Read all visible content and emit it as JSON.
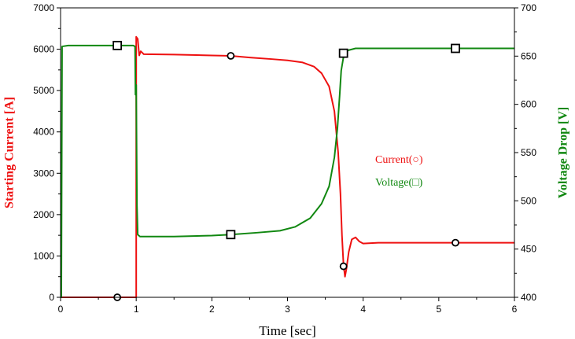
{
  "chart_data": {
    "type": "line",
    "xlabel": "Time [sec]",
    "ylabel_left": "Starting Current [A]",
    "ylabel_right": "Voltage Drop [V]",
    "xlim": [
      0,
      6
    ],
    "ylim_left": [
      0,
      7000
    ],
    "ylim_right": [
      400,
      700
    ],
    "x_ticks": [
      "0",
      "1",
      "2",
      "3",
      "4",
      "5",
      "6"
    ],
    "y_left_ticks": [
      "0",
      "1000",
      "2000",
      "3000",
      "4000",
      "5000",
      "6000",
      "7000"
    ],
    "y_right_ticks": [
      "400",
      "450",
      "500",
      "550",
      "600",
      "650",
      "700"
    ],
    "grid": false,
    "legend_labels": [
      "Current(○)",
      "Voltage(□)"
    ],
    "colors": {
      "current": "#ee1111",
      "voltage": "#118811",
      "axis": "#000000"
    },
    "series": [
      {
        "name": "Current(○)",
        "axis": "left",
        "color": "#ee1111",
        "marker": "circle",
        "points": [
          [
            0,
            0
          ],
          [
            1.0,
            0
          ],
          [
            1.0,
            6300
          ],
          [
            1.02,
            6250
          ],
          [
            1.04,
            5850
          ],
          [
            1.06,
            5950
          ],
          [
            1.1,
            5880
          ],
          [
            1.5,
            5870
          ],
          [
            2.0,
            5850
          ],
          [
            2.25,
            5840
          ],
          [
            2.5,
            5800
          ],
          [
            2.8,
            5760
          ],
          [
            3.0,
            5730
          ],
          [
            3.2,
            5680
          ],
          [
            3.35,
            5580
          ],
          [
            3.45,
            5420
          ],
          [
            3.55,
            5100
          ],
          [
            3.62,
            4500
          ],
          [
            3.67,
            3500
          ],
          [
            3.7,
            2500
          ],
          [
            3.72,
            1500
          ],
          [
            3.74,
            800
          ],
          [
            3.76,
            500
          ],
          [
            3.78,
            700
          ],
          [
            3.81,
            1100
          ],
          [
            3.85,
            1400
          ],
          [
            3.9,
            1450
          ],
          [
            3.95,
            1350
          ],
          [
            4.0,
            1300
          ],
          [
            4.2,
            1320
          ],
          [
            5.0,
            1320
          ],
          [
            6.0,
            1320
          ]
        ],
        "markers": [
          [
            0.75,
            0
          ],
          [
            2.25,
            5840
          ],
          [
            3.74,
            750
          ],
          [
            5.22,
            1320
          ]
        ]
      },
      {
        "name": "Voltage(□)",
        "axis": "right",
        "color": "#118811",
        "marker": "square",
        "points": [
          [
            0,
            400
          ],
          [
            0.01,
            400
          ],
          [
            0.02,
            660
          ],
          [
            0.1,
            661
          ],
          [
            0.5,
            661
          ],
          [
            0.96,
            661
          ],
          [
            0.985,
            660
          ],
          [
            0.99,
            610
          ],
          [
            1.0,
            620
          ],
          [
            1.01,
            495
          ],
          [
            1.02,
            465
          ],
          [
            1.05,
            463
          ],
          [
            1.5,
            463
          ],
          [
            2.0,
            464
          ],
          [
            2.25,
            465
          ],
          [
            2.6,
            467
          ],
          [
            2.9,
            469
          ],
          [
            3.1,
            473
          ],
          [
            3.3,
            482
          ],
          [
            3.45,
            497
          ],
          [
            3.55,
            515
          ],
          [
            3.62,
            545
          ],
          [
            3.66,
            575
          ],
          [
            3.69,
            610
          ],
          [
            3.71,
            635
          ],
          [
            3.74,
            649
          ],
          [
            3.8,
            656
          ],
          [
            3.9,
            658
          ],
          [
            4.0,
            658
          ],
          [
            5.0,
            658
          ],
          [
            6.0,
            658
          ]
        ],
        "markers": [
          [
            0.75,
            661
          ],
          [
            2.25,
            465
          ],
          [
            3.74,
            653
          ],
          [
            5.22,
            658
          ]
        ]
      }
    ]
  }
}
